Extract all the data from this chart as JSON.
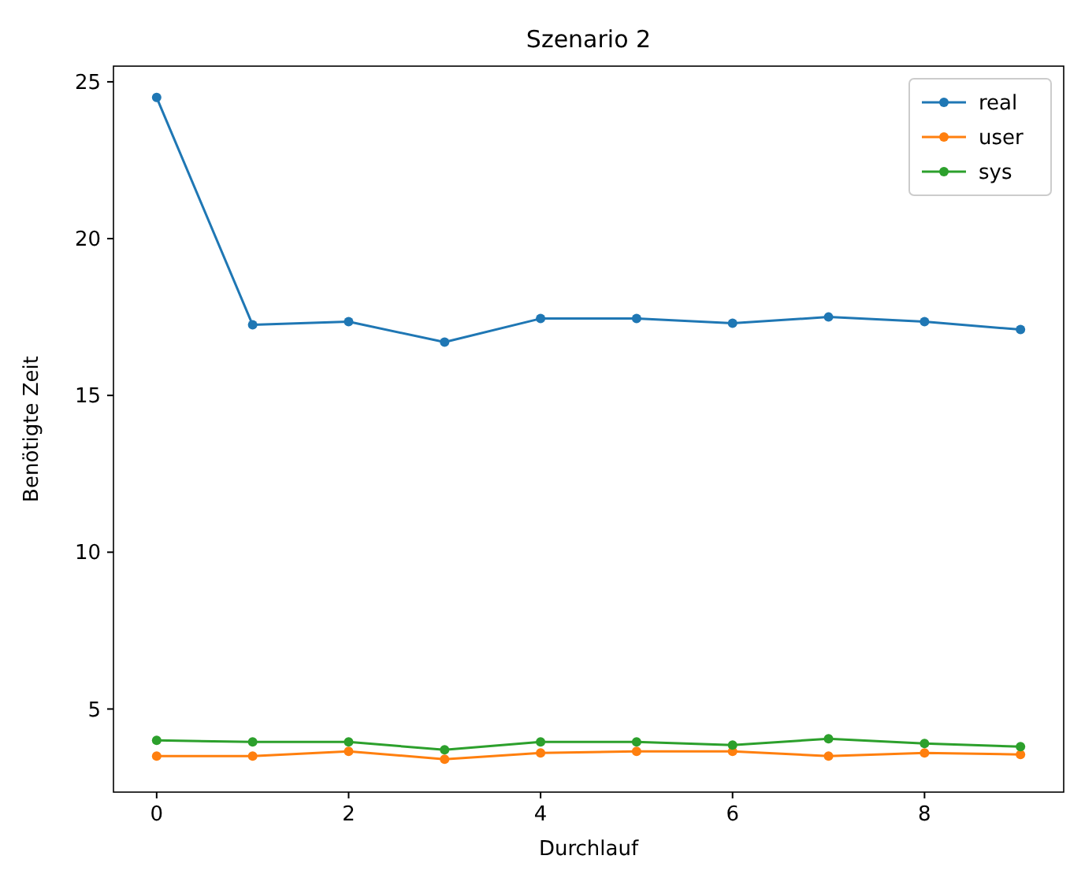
{
  "chart_data": {
    "type": "line",
    "title": "Szenario 2",
    "xlabel": "Durchlauf",
    "ylabel": "Benötigte Zeit",
    "x": [
      0,
      1,
      2,
      3,
      4,
      5,
      6,
      7,
      8,
      9
    ],
    "series": [
      {
        "name": "real",
        "color": "#1f77b4",
        "values": [
          24.5,
          17.25,
          17.35,
          16.7,
          17.45,
          17.45,
          17.3,
          17.5,
          17.35,
          17.1
        ]
      },
      {
        "name": "user",
        "color": "#ff7f0e",
        "values": [
          3.5,
          3.5,
          3.65,
          3.4,
          3.6,
          3.65,
          3.65,
          3.5,
          3.6,
          3.55
        ]
      },
      {
        "name": "sys",
        "color": "#2ca02c",
        "values": [
          4.0,
          3.95,
          3.95,
          3.7,
          3.95,
          3.95,
          3.85,
          4.05,
          3.9,
          3.8
        ]
      }
    ],
    "xlim": [
      -0.45,
      9.45
    ],
    "xticks": [
      0,
      2,
      4,
      6,
      8
    ],
    "ylim": [
      2.35,
      25.5
    ],
    "yticks": [
      5,
      10,
      15,
      20,
      25
    ],
    "legend": "top right",
    "marker": "circle",
    "line_style": "solid",
    "grid": false
  }
}
